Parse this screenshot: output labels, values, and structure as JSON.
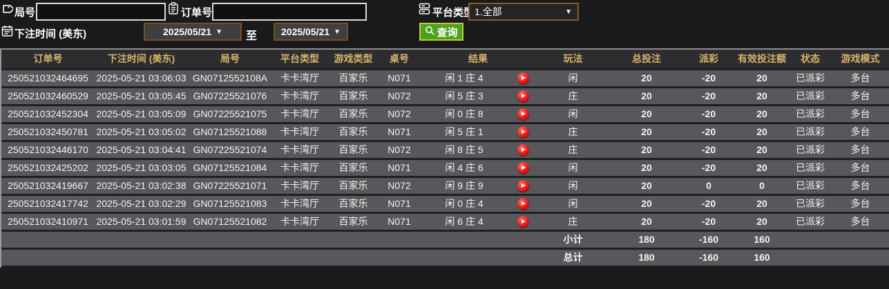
{
  "filters": {
    "game_no_label": "局号",
    "game_no_value": "",
    "order_no_label": "订单号",
    "order_no_value": "",
    "platform_label": "平台类型",
    "platform_value": "1.全部",
    "bet_time_label": "下注时间 (美东)",
    "date_from": "2025/05/21",
    "to_label": "至",
    "date_to": "2025/05/21",
    "query_label": "查询"
  },
  "table": {
    "headers": [
      "订单号",
      "下注时间 (美东)",
      "局号",
      "平台类型",
      "游戏类型",
      "桌号",
      "结果",
      "玩法",
      "总投注",
      "派彩",
      "有效投注额",
      "状态",
      "游戏模式"
    ],
    "rows": [
      [
        "250521032464695",
        "2025-05-21 03:06:03",
        "GN0712552108A",
        "卡卡湾厅",
        "百家乐",
        "N071",
        "闲 1 庄 4",
        "闲",
        "20",
        "-20",
        "20",
        "已派彩",
        "多台"
      ],
      [
        "250521032460529",
        "2025-05-21 03:05:45",
        "GN07225521076",
        "卡卡湾厅",
        "百家乐",
        "N072",
        "闲 5 庄 3",
        "庄",
        "20",
        "-20",
        "20",
        "已派彩",
        "多台"
      ],
      [
        "250521032452304",
        "2025-05-21 03:05:09",
        "GN07225521075",
        "卡卡湾厅",
        "百家乐",
        "N072",
        "闲 0 庄 8",
        "闲",
        "20",
        "-20",
        "20",
        "已派彩",
        "多台"
      ],
      [
        "250521032450781",
        "2025-05-21 03:05:02",
        "GN07125521088",
        "卡卡湾厅",
        "百家乐",
        "N071",
        "闲 5 庄 1",
        "庄",
        "20",
        "-20",
        "20",
        "已派彩",
        "多台"
      ],
      [
        "250521032446170",
        "2025-05-21 03:04:41",
        "GN07225521074",
        "卡卡湾厅",
        "百家乐",
        "N072",
        "闲 8 庄 5",
        "庄",
        "20",
        "-20",
        "20",
        "已派彩",
        "多台"
      ],
      [
        "250521032425202",
        "2025-05-21 03:03:05",
        "GN07125521084",
        "卡卡湾厅",
        "百家乐",
        "N071",
        "闲 4 庄 6",
        "闲",
        "20",
        "-20",
        "20",
        "已派彩",
        "多台"
      ],
      [
        "250521032419667",
        "2025-05-21 03:02:38",
        "GN07225521071",
        "卡卡湾厅",
        "百家乐",
        "N072",
        "闲 9 庄 9",
        "闲",
        "20",
        "0",
        "0",
        "已派彩",
        "多台"
      ],
      [
        "250521032417742",
        "2025-05-21 03:02:29",
        "GN07125521083",
        "卡卡湾厅",
        "百家乐",
        "N071",
        "闲 0 庄 4",
        "闲",
        "20",
        "-20",
        "20",
        "已派彩",
        "多台"
      ],
      [
        "250521032410971",
        "2025-05-21 03:01:59",
        "GN07125521082",
        "卡卡湾厅",
        "百家乐",
        "N071",
        "闲 6 庄 4",
        "庄",
        "20",
        "-20",
        "20",
        "已派彩",
        "多台"
      ]
    ],
    "summary": [
      {
        "label": "小计",
        "total_bet": "180",
        "payout": "-160",
        "valid_bet": "160"
      },
      {
        "label": "总计",
        "total_bet": "180",
        "payout": "-160",
        "valid_bet": "160"
      }
    ]
  },
  "colors": {
    "header_text": "#d6b46a",
    "row_bg": "#58575b",
    "green": "#55e018",
    "status_green": "#30d330",
    "summary_yellow": "#e9e400",
    "query_button": "#4aa21d",
    "date_border": "#7d4f1d"
  }
}
